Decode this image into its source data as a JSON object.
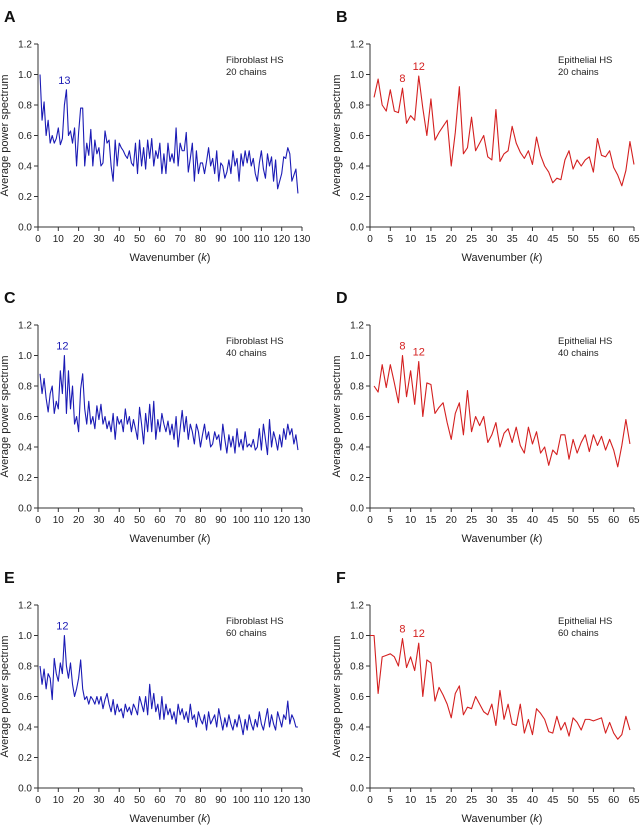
{
  "chart_data": [
    {
      "type": "line",
      "panel_letter": "A",
      "legend_lines": [
        "Fibroblast HS",
        "20 chains"
      ],
      "annotations": [
        {
          "x": 13,
          "y": 0.9,
          "text": "13"
        }
      ],
      "color": "#1b1bb5",
      "xlabel_prefix": "Wavenumber (",
      "xlabel_var": "k",
      "xlabel_suffix": ")",
      "ylabel": "Average power spectrum",
      "xlim": [
        0,
        130
      ],
      "ylim": [
        0,
        1.2
      ],
      "xticks": [
        0,
        10,
        20,
        30,
        40,
        50,
        60,
        70,
        80,
        90,
        100,
        110,
        120,
        130
      ],
      "yticks": [
        0.0,
        0.2,
        0.4,
        0.6,
        0.8,
        1.0,
        1.2
      ],
      "x_start": 1,
      "x_step": 1,
      "values": [
        1.0,
        0.7,
        0.82,
        0.6,
        0.7,
        0.55,
        0.6,
        0.55,
        0.58,
        0.65,
        0.54,
        0.58,
        0.8,
        0.9,
        0.6,
        0.63,
        0.55,
        0.65,
        0.4,
        0.62,
        0.78,
        0.78,
        0.4,
        0.55,
        0.47,
        0.64,
        0.4,
        0.57,
        0.48,
        0.52,
        0.4,
        0.42,
        0.63,
        0.55,
        0.57,
        0.4,
        0.3,
        0.57,
        0.4,
        0.55,
        0.52,
        0.5,
        0.47,
        0.45,
        0.5,
        0.42,
        0.4,
        0.55,
        0.35,
        0.57,
        0.4,
        0.52,
        0.38,
        0.57,
        0.45,
        0.58,
        0.4,
        0.5,
        0.45,
        0.55,
        0.35,
        0.48,
        0.35,
        0.55,
        0.43,
        0.48,
        0.42,
        0.65,
        0.4,
        0.55,
        0.5,
        0.5,
        0.62,
        0.36,
        0.45,
        0.55,
        0.3,
        0.5,
        0.35,
        0.42,
        0.42,
        0.35,
        0.43,
        0.52,
        0.4,
        0.45,
        0.35,
        0.5,
        0.3,
        0.42,
        0.4,
        0.32,
        0.36,
        0.44,
        0.35,
        0.5,
        0.4,
        0.45,
        0.3,
        0.48,
        0.4,
        0.5,
        0.42,
        0.5,
        0.4,
        0.45,
        0.35,
        0.3,
        0.42,
        0.5,
        0.38,
        0.32,
        0.48,
        0.4,
        0.46,
        0.3,
        0.44,
        0.25,
        0.3,
        0.35,
        0.46,
        0.45,
        0.52,
        0.48,
        0.3,
        0.34,
        0.38,
        0.22
      ]
    },
    {
      "type": "line",
      "panel_letter": "B",
      "legend_lines": [
        "Epithelial HS",
        "20 chains"
      ],
      "annotations": [
        {
          "x": 8,
          "y": 0.91,
          "text": "8"
        },
        {
          "x": 12,
          "y": 0.99,
          "text": "12"
        }
      ],
      "color": "#d42020",
      "xlabel_prefix": "Wavenumber (",
      "xlabel_var": "k",
      "xlabel_suffix": ")",
      "ylabel": "Average power spectrum",
      "xlim": [
        0,
        65
      ],
      "ylim": [
        0,
        1.2
      ],
      "xticks": [
        0,
        5,
        10,
        15,
        20,
        25,
        30,
        35,
        40,
        45,
        50,
        55,
        60,
        65
      ],
      "yticks": [
        0.0,
        0.2,
        0.4,
        0.6,
        0.8,
        1.0,
        1.2
      ],
      "x_start": 1,
      "x_step": 1,
      "values": [
        0.85,
        0.97,
        0.8,
        0.76,
        0.9,
        0.76,
        0.75,
        0.91,
        0.68,
        0.73,
        0.7,
        0.99,
        0.78,
        0.6,
        0.84,
        0.57,
        0.62,
        0.66,
        0.7,
        0.4,
        0.62,
        0.92,
        0.48,
        0.52,
        0.72,
        0.5,
        0.55,
        0.6,
        0.46,
        0.44,
        0.77,
        0.43,
        0.48,
        0.5,
        0.66,
        0.55,
        0.49,
        0.45,
        0.5,
        0.41,
        0.59,
        0.47,
        0.4,
        0.36,
        0.29,
        0.32,
        0.31,
        0.44,
        0.5,
        0.38,
        0.44,
        0.4,
        0.44,
        0.46,
        0.36,
        0.58,
        0.47,
        0.46,
        0.5,
        0.39,
        0.34,
        0.27,
        0.37,
        0.56,
        0.41
      ]
    },
    {
      "type": "line",
      "panel_letter": "C",
      "legend_lines": [
        "Fibroblast HS",
        "40 chains"
      ],
      "annotations": [
        {
          "x": 12,
          "y": 1.0,
          "text": "12"
        }
      ],
      "color": "#1b1bb5",
      "xlabel_prefix": "Wavenumber (",
      "xlabel_var": "k",
      "xlabel_suffix": ")",
      "ylabel": "Average power spectrum",
      "xlim": [
        0,
        130
      ],
      "ylim": [
        0,
        1.2
      ],
      "xticks": [
        0,
        10,
        20,
        30,
        40,
        50,
        60,
        70,
        80,
        90,
        100,
        110,
        120,
        130
      ],
      "yticks": [
        0.0,
        0.2,
        0.4,
        0.6,
        0.8,
        1.0,
        1.2
      ],
      "x_start": 1,
      "x_step": 1,
      "values": [
        0.88,
        0.75,
        0.85,
        0.72,
        0.63,
        0.75,
        0.8,
        0.62,
        0.7,
        0.65,
        0.9,
        0.75,
        1.0,
        0.62,
        0.9,
        0.65,
        0.8,
        0.55,
        0.6,
        0.5,
        0.78,
        0.88,
        0.65,
        0.55,
        0.7,
        0.55,
        0.6,
        0.52,
        0.67,
        0.58,
        0.68,
        0.55,
        0.6,
        0.52,
        0.57,
        0.5,
        0.62,
        0.45,
        0.6,
        0.55,
        0.58,
        0.5,
        0.65,
        0.55,
        0.6,
        0.5,
        0.58,
        0.52,
        0.45,
        0.66,
        0.55,
        0.42,
        0.62,
        0.5,
        0.68,
        0.5,
        0.7,
        0.45,
        0.58,
        0.5,
        0.62,
        0.55,
        0.5,
        0.57,
        0.48,
        0.55,
        0.45,
        0.6,
        0.4,
        0.52,
        0.64,
        0.5,
        0.6,
        0.45,
        0.55,
        0.5,
        0.42,
        0.55,
        0.5,
        0.4,
        0.48,
        0.55,
        0.45,
        0.5,
        0.4,
        0.42,
        0.5,
        0.45,
        0.48,
        0.38,
        0.55,
        0.45,
        0.36,
        0.48,
        0.4,
        0.47,
        0.36,
        0.52,
        0.4,
        0.45,
        0.38,
        0.5,
        0.4,
        0.42,
        0.4,
        0.45,
        0.38,
        0.4,
        0.52,
        0.38,
        0.55,
        0.45,
        0.35,
        0.58,
        0.4,
        0.5,
        0.45,
        0.38,
        0.48,
        0.4,
        0.52,
        0.45,
        0.55,
        0.48,
        0.52,
        0.42,
        0.48,
        0.38
      ]
    },
    {
      "type": "line",
      "panel_letter": "D",
      "legend_lines": [
        "Epithelial HS",
        "40 chains"
      ],
      "annotations": [
        {
          "x": 8,
          "y": 1.0,
          "text": "8"
        },
        {
          "x": 12,
          "y": 0.96,
          "text": "12"
        }
      ],
      "color": "#d42020",
      "xlabel_prefix": "Wavenumber (",
      "xlabel_var": "k",
      "xlabel_suffix": ")",
      "ylabel": "Average power spectrum",
      "xlim": [
        0,
        65
      ],
      "ylim": [
        0,
        1.2
      ],
      "xticks": [
        0,
        5,
        10,
        15,
        20,
        25,
        30,
        35,
        40,
        45,
        50,
        55,
        60,
        65
      ],
      "yticks": [
        0.0,
        0.2,
        0.4,
        0.6,
        0.8,
        1.0,
        1.2
      ],
      "x_start": 1,
      "x_step": 1,
      "values": [
        0.8,
        0.76,
        0.94,
        0.79,
        0.94,
        0.82,
        0.69,
        1.0,
        0.73,
        0.9,
        0.68,
        0.96,
        0.6,
        0.82,
        0.81,
        0.62,
        0.66,
        0.69,
        0.56,
        0.45,
        0.62,
        0.69,
        0.48,
        0.77,
        0.5,
        0.6,
        0.54,
        0.6,
        0.43,
        0.48,
        0.56,
        0.4,
        0.49,
        0.52,
        0.43,
        0.53,
        0.41,
        0.36,
        0.53,
        0.42,
        0.5,
        0.36,
        0.4,
        0.28,
        0.38,
        0.35,
        0.48,
        0.48,
        0.32,
        0.45,
        0.36,
        0.43,
        0.48,
        0.37,
        0.48,
        0.41,
        0.47,
        0.38,
        0.45,
        0.38,
        0.27,
        0.41,
        0.58,
        0.42
      ]
    },
    {
      "type": "line",
      "panel_letter": "E",
      "legend_lines": [
        "Fibroblast HS",
        "60 chains"
      ],
      "annotations": [
        {
          "x": 12,
          "y": 1.0,
          "text": "12"
        }
      ],
      "color": "#1b1bb5",
      "xlabel_prefix": "Wavenumber (",
      "xlabel_var": "k",
      "xlabel_suffix": ")",
      "ylabel": "Average power spectrum",
      "xlim": [
        0,
        130
      ],
      "ylim": [
        0,
        1.2
      ],
      "xticks": [
        0,
        10,
        20,
        30,
        40,
        50,
        60,
        70,
        80,
        90,
        100,
        110,
        120,
        130
      ],
      "yticks": [
        0.0,
        0.2,
        0.4,
        0.6,
        0.8,
        1.0,
        1.2
      ],
      "x_start": 1,
      "x_step": 1,
      "values": [
        0.8,
        0.68,
        0.78,
        0.65,
        0.75,
        0.72,
        0.58,
        0.85,
        0.75,
        0.7,
        0.82,
        0.75,
        1.0,
        0.8,
        0.72,
        0.82,
        0.68,
        0.6,
        0.65,
        0.72,
        0.84,
        0.65,
        0.58,
        0.6,
        0.55,
        0.6,
        0.58,
        0.55,
        0.6,
        0.55,
        0.6,
        0.52,
        0.58,
        0.62,
        0.55,
        0.5,
        0.58,
        0.48,
        0.55,
        0.5,
        0.52,
        0.46,
        0.55,
        0.5,
        0.53,
        0.48,
        0.55,
        0.52,
        0.48,
        0.6,
        0.55,
        0.5,
        0.6,
        0.48,
        0.68,
        0.52,
        0.62,
        0.5,
        0.55,
        0.45,
        0.6,
        0.45,
        0.55,
        0.48,
        0.52,
        0.45,
        0.5,
        0.42,
        0.55,
        0.48,
        0.52,
        0.45,
        0.5,
        0.43,
        0.55,
        0.45,
        0.48,
        0.4,
        0.5,
        0.45,
        0.42,
        0.48,
        0.38,
        0.5,
        0.42,
        0.45,
        0.48,
        0.4,
        0.52,
        0.45,
        0.38,
        0.46,
        0.4,
        0.48,
        0.42,
        0.38,
        0.45,
        0.4,
        0.48,
        0.42,
        0.35,
        0.45,
        0.38,
        0.48,
        0.42,
        0.38,
        0.45,
        0.4,
        0.5,
        0.42,
        0.38,
        0.45,
        0.52,
        0.4,
        0.48,
        0.42,
        0.38,
        0.5,
        0.45,
        0.4,
        0.48,
        0.45,
        0.57,
        0.42,
        0.48,
        0.45,
        0.4,
        0.4
      ]
    },
    {
      "type": "line",
      "panel_letter": "F",
      "legend_lines": [
        "Epithelial HS",
        "60 chains"
      ],
      "annotations": [
        {
          "x": 8,
          "y": 0.98,
          "text": "8"
        },
        {
          "x": 12,
          "y": 0.95,
          "text": "12"
        }
      ],
      "color": "#d42020",
      "xlabel_prefix": "Wavenumber (",
      "xlabel_var": "k",
      "xlabel_suffix": ")",
      "ylabel": "Average power spectrum",
      "xlim": [
        0,
        65
      ],
      "ylim": [
        0,
        1.2
      ],
      "xticks": [
        0,
        5,
        10,
        15,
        20,
        25,
        30,
        35,
        40,
        45,
        50,
        55,
        60,
        65
      ],
      "yticks": [
        0.0,
        0.2,
        0.4,
        0.6,
        0.8,
        1.0,
        1.2
      ],
      "x_start": 0,
      "x_step": 1,
      "values": [
        1.0,
        1.0,
        0.62,
        0.86,
        0.87,
        0.88,
        0.86,
        0.8,
        0.98,
        0.79,
        0.86,
        0.77,
        0.95,
        0.6,
        0.84,
        0.82,
        0.57,
        0.66,
        0.61,
        0.55,
        0.46,
        0.62,
        0.67,
        0.48,
        0.53,
        0.52,
        0.6,
        0.55,
        0.5,
        0.48,
        0.55,
        0.41,
        0.64,
        0.45,
        0.55,
        0.42,
        0.41,
        0.55,
        0.36,
        0.45,
        0.35,
        0.52,
        0.49,
        0.45,
        0.37,
        0.36,
        0.47,
        0.38,
        0.43,
        0.34,
        0.46,
        0.43,
        0.38,
        0.45,
        0.45,
        0.44,
        0.45,
        0.46,
        0.36,
        0.43,
        0.36,
        0.32,
        0.35,
        0.47,
        0.38
      ]
    }
  ]
}
